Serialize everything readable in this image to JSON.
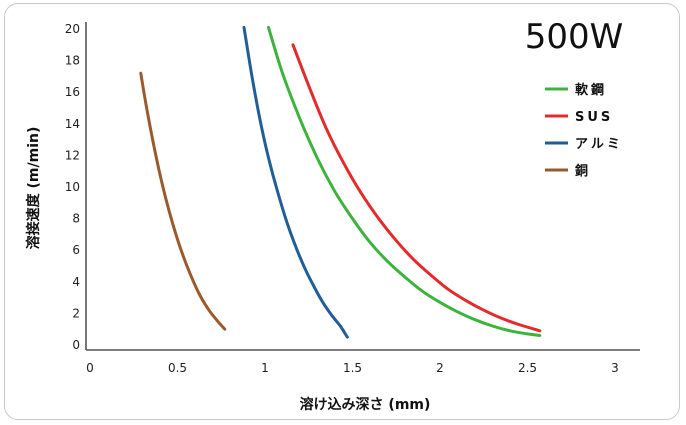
{
  "chart_data": {
    "type": "line",
    "title": "500W",
    "xlabel": "溶け込み深さ (mm)",
    "ylabel": "溶接速度 (m/min)",
    "xlim": [
      0,
      3
    ],
    "ylim": [
      0,
      20
    ],
    "xticks": [
      {
        "value": 0,
        "label": "0"
      },
      {
        "value": 0.5,
        "label": "0.5"
      },
      {
        "value": 1,
        "label": "1"
      },
      {
        "value": 1.5,
        "label": "1.5"
      },
      {
        "value": 2,
        "label": "2"
      },
      {
        "value": 2.5,
        "label": "2.5"
      },
      {
        "value": 3,
        "label": "3"
      }
    ],
    "yticks": [
      {
        "value": 0,
        "label": "0"
      },
      {
        "value": 2,
        "label": "2"
      },
      {
        "value": 4,
        "label": "4"
      },
      {
        "value": 6,
        "label": "6"
      },
      {
        "value": 8,
        "label": "8"
      },
      {
        "value": 10,
        "label": "10"
      },
      {
        "value": 12,
        "label": "12"
      },
      {
        "value": 14,
        "label": "14"
      },
      {
        "value": 16,
        "label": "16"
      },
      {
        "value": 18,
        "label": "18"
      },
      {
        "value": 20,
        "label": "20"
      }
    ],
    "grid": false,
    "legend_position": "right",
    "series": [
      {
        "name": "軟鋼",
        "color": "#3cb43c",
        "points": [
          [
            1.02,
            20.1
          ],
          [
            1.1,
            17.2
          ],
          [
            1.2,
            14.3
          ],
          [
            1.3,
            11.8
          ],
          [
            1.4,
            9.7
          ],
          [
            1.5,
            8.0
          ],
          [
            1.6,
            6.5
          ],
          [
            1.7,
            5.3
          ],
          [
            1.8,
            4.3
          ],
          [
            1.9,
            3.4
          ],
          [
            2.0,
            2.7
          ],
          [
            2.1,
            2.1
          ],
          [
            2.2,
            1.6
          ],
          [
            2.3,
            1.2
          ],
          [
            2.4,
            0.9
          ],
          [
            2.5,
            0.7
          ],
          [
            2.57,
            0.6
          ]
        ]
      },
      {
        "name": "SUS",
        "color": "#e32b2b",
        "points": [
          [
            1.16,
            19.0
          ],
          [
            1.25,
            16.4
          ],
          [
            1.35,
            13.7
          ],
          [
            1.45,
            11.5
          ],
          [
            1.55,
            9.6
          ],
          [
            1.65,
            8.0
          ],
          [
            1.75,
            6.6
          ],
          [
            1.85,
            5.4
          ],
          [
            1.95,
            4.4
          ],
          [
            2.05,
            3.5
          ],
          [
            2.15,
            2.8
          ],
          [
            2.25,
            2.2
          ],
          [
            2.35,
            1.7
          ],
          [
            2.45,
            1.3
          ],
          [
            2.57,
            0.9
          ]
        ]
      },
      {
        "name": "アルミ",
        "color": "#1f5e96",
        "points": [
          [
            0.88,
            20.1
          ],
          [
            0.93,
            16.7
          ],
          [
            0.98,
            13.8
          ],
          [
            1.03,
            11.4
          ],
          [
            1.08,
            9.4
          ],
          [
            1.13,
            7.6
          ],
          [
            1.18,
            6.1
          ],
          [
            1.23,
            4.8
          ],
          [
            1.28,
            3.7
          ],
          [
            1.33,
            2.7
          ],
          [
            1.38,
            1.9
          ],
          [
            1.43,
            1.2
          ],
          [
            1.47,
            0.5
          ]
        ]
      },
      {
        "name": "銅",
        "color": "#9a5a2c",
        "points": [
          [
            0.29,
            17.2
          ],
          [
            0.33,
            14.6
          ],
          [
            0.38,
            11.8
          ],
          [
            0.43,
            9.4
          ],
          [
            0.48,
            7.4
          ],
          [
            0.53,
            5.7
          ],
          [
            0.58,
            4.3
          ],
          [
            0.63,
            3.1
          ],
          [
            0.68,
            2.2
          ],
          [
            0.73,
            1.5
          ],
          [
            0.77,
            1.0
          ]
        ]
      }
    ]
  }
}
